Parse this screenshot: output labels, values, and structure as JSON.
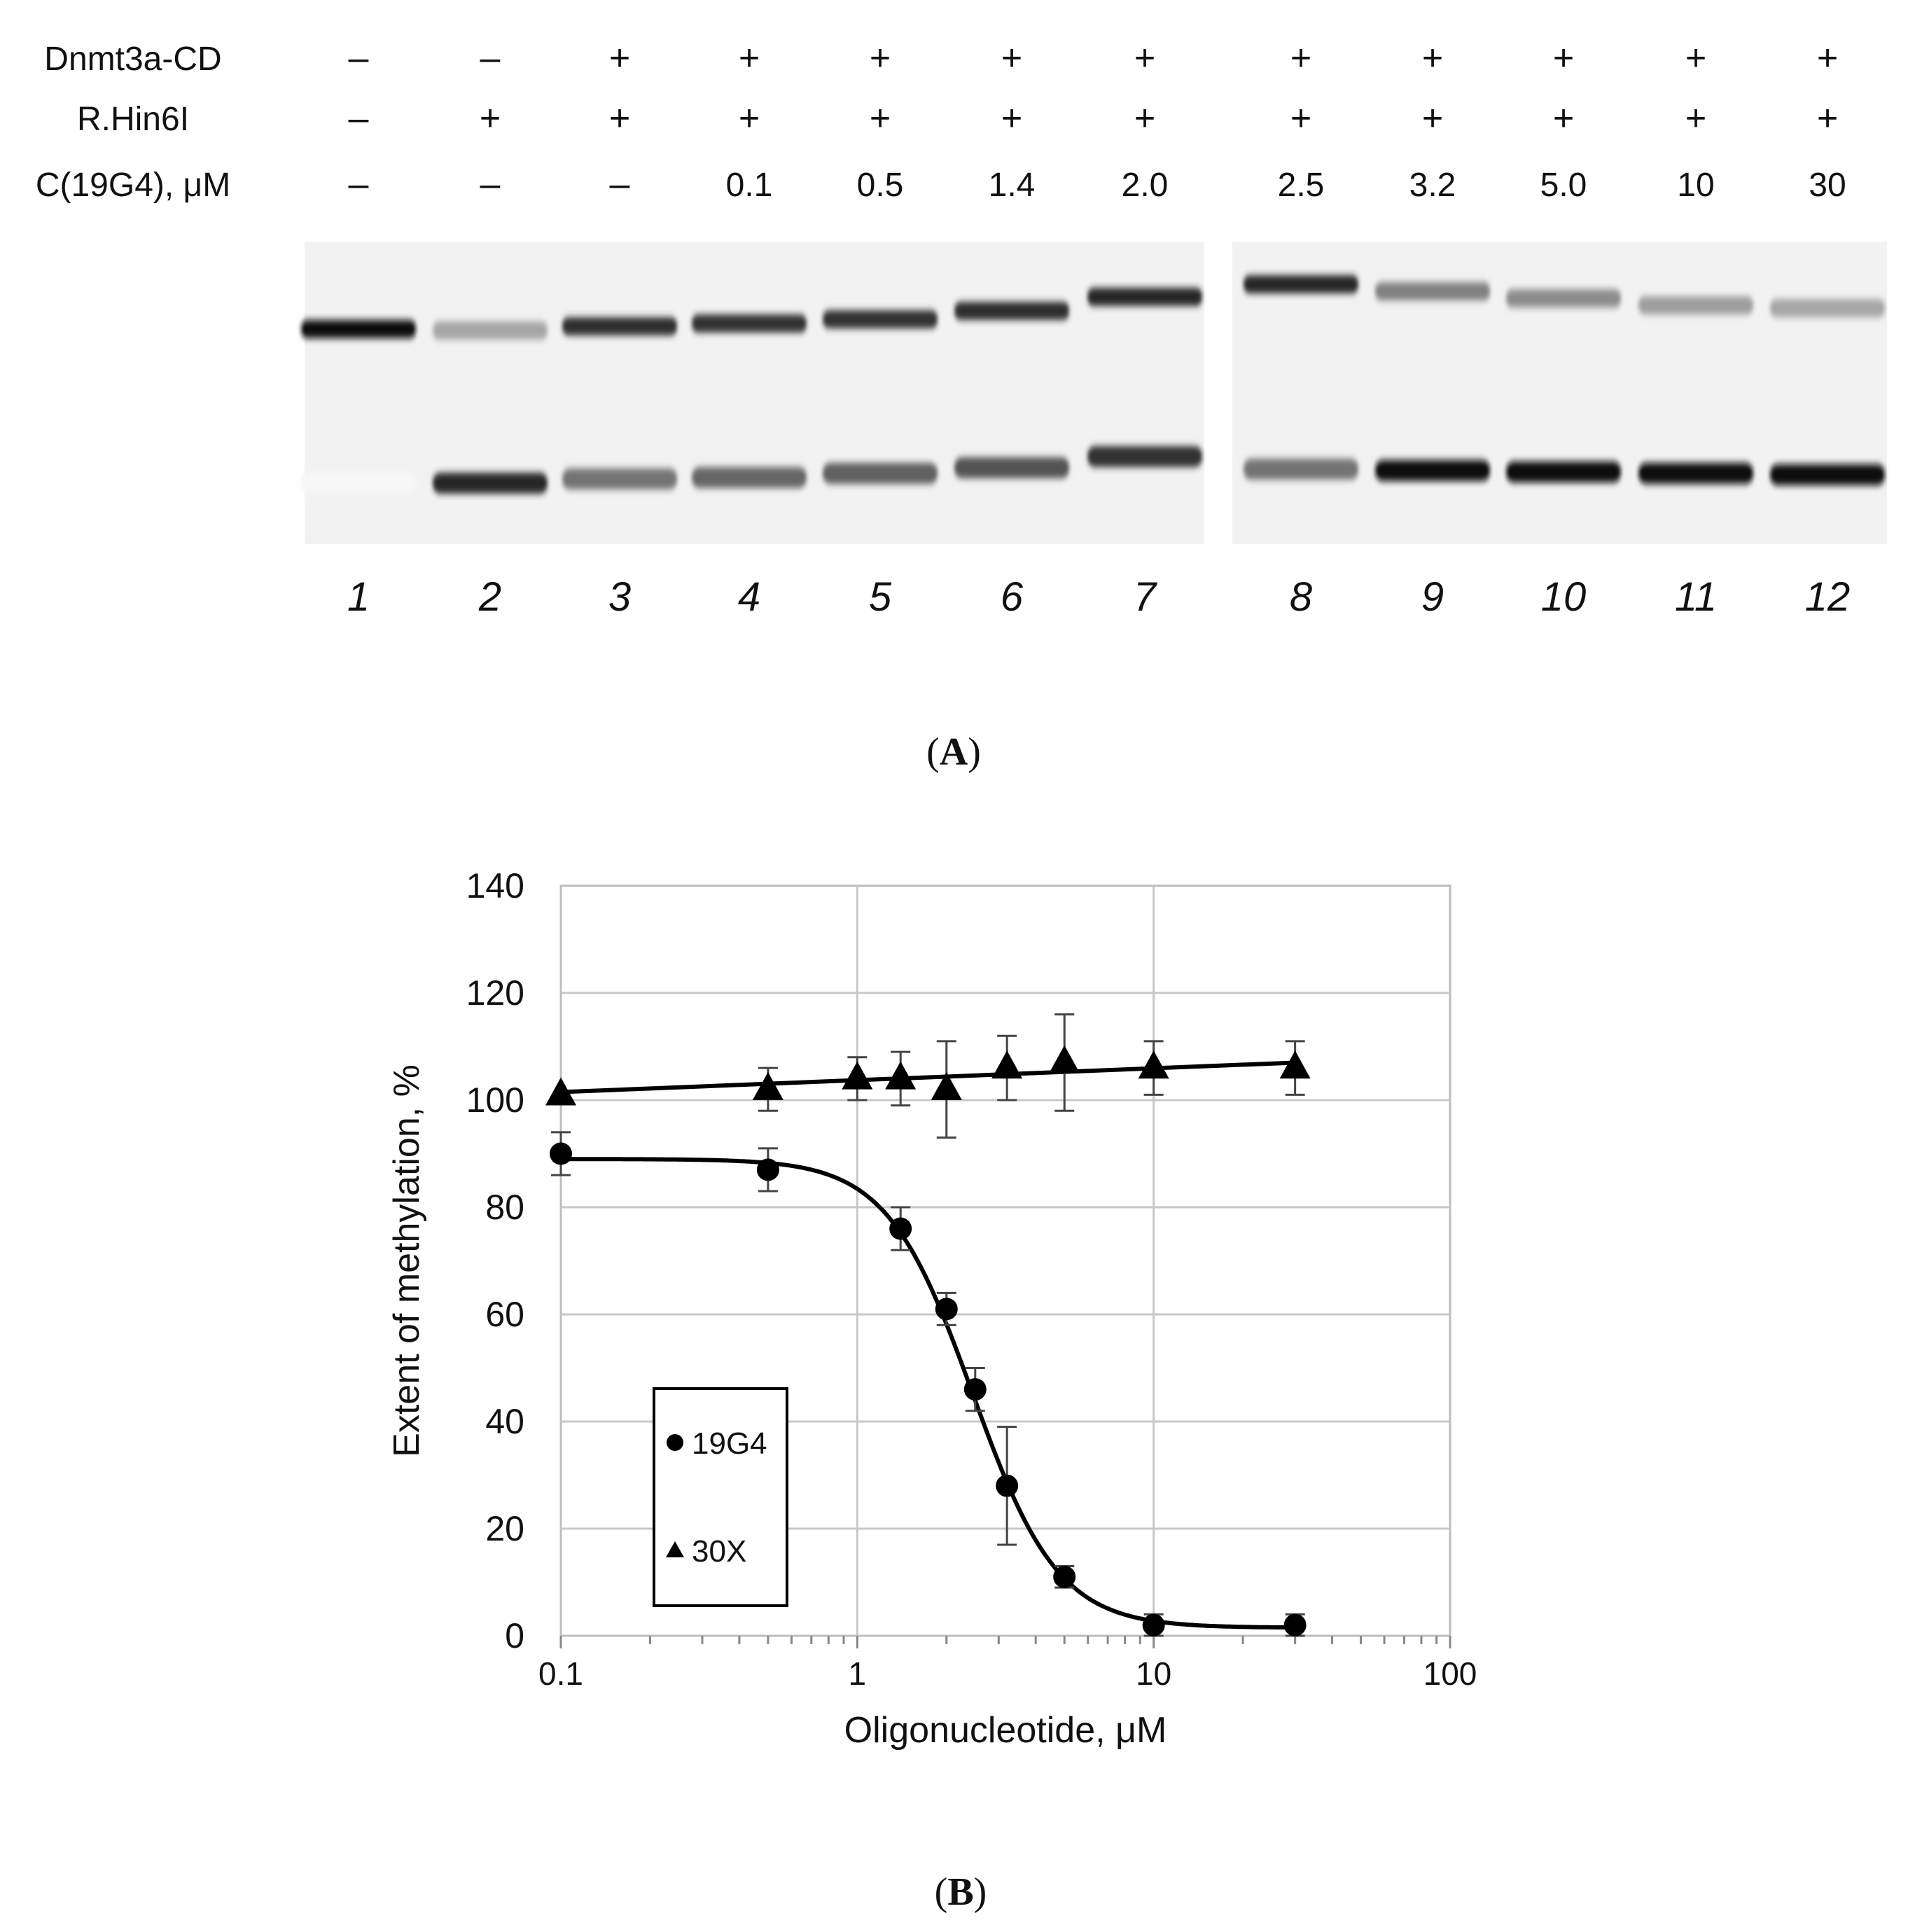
{
  "gel": {
    "row_labels": [
      "Dnmt3a-CD",
      "R.Hin6I",
      "C(19G4), μM"
    ],
    "rows": [
      [
        "–",
        "–",
        "+",
        "+",
        "+",
        "+",
        "+",
        "+",
        "+",
        "+",
        "+",
        "+"
      ],
      [
        "–",
        "+",
        "+",
        "+",
        "+",
        "+",
        "+",
        "+",
        "+",
        "+",
        "+",
        "+"
      ],
      [
        "–",
        "–",
        "–",
        "0.1",
        "0.5",
        "1.4",
        "2.0",
        "2.5",
        "3.2",
        "5.0",
        "10",
        "30"
      ]
    ],
    "lane_numbers": [
      "1",
      "2",
      "3",
      "4",
      "5",
      "6",
      "7",
      "8",
      "9",
      "10",
      "11",
      "12"
    ],
    "band_intensity_upper": [
      0.95,
      0.35,
      0.82,
      0.8,
      0.8,
      0.82,
      0.85,
      0.85,
      0.5,
      0.45,
      0.38,
      0.35
    ],
    "band_intensity_lower": [
      0.03,
      0.85,
      0.55,
      0.6,
      0.62,
      0.68,
      0.8,
      0.55,
      0.95,
      0.95,
      0.97,
      0.97
    ]
  },
  "panel_a_label": {
    "open": "(",
    "letter": "A",
    "close": ")"
  },
  "panel_b_label": {
    "open": "(",
    "letter": "B",
    "close": ")"
  },
  "chart_data": {
    "type": "scatter",
    "xscale": "log",
    "xlabel": "Oligonucleotide, μM",
    "ylabel": "Extent of methylation, %",
    "xlim": [
      0.1,
      100
    ],
    "ylim": [
      0,
      140
    ],
    "x_ticks": [
      0.1,
      1,
      10,
      100
    ],
    "x_tick_labels": [
      "0.1",
      "1",
      "10",
      "100"
    ],
    "y_ticks": [
      0,
      20,
      40,
      60,
      80,
      100,
      120,
      140
    ],
    "y_tick_labels": [
      "0",
      "20",
      "40",
      "60",
      "80",
      "100",
      "120",
      "140"
    ],
    "grid": true,
    "legend_position": "lower-left",
    "series": [
      {
        "name": "19G4",
        "marker": "circle",
        "x": [
          0.1,
          0.5,
          1.4,
          2.0,
          2.5,
          3.2,
          5.0,
          10,
          30
        ],
        "y": [
          90,
          87,
          76,
          61,
          46,
          28,
          11,
          2,
          2
        ],
        "err": [
          4,
          4,
          4,
          3,
          4,
          11,
          2,
          2,
          2
        ],
        "fit": {
          "model": "logistic",
          "top": 89,
          "bottom": 1.5,
          "ec50": 2.45,
          "hill": 3.0
        }
      },
      {
        "name": "30X",
        "marker": "triangle",
        "x": [
          0.1,
          0.5,
          1.0,
          1.4,
          2.0,
          3.2,
          5.0,
          10,
          30
        ],
        "y": [
          101,
          102,
          104,
          104,
          102,
          106,
          107,
          106,
          106
        ],
        "err": [
          0,
          4,
          4,
          5,
          9,
          6,
          9,
          5,
          5
        ],
        "fit": {
          "model": "log-linear",
          "y_at_0.1": 101.5,
          "y_at_30": 107
        }
      }
    ]
  }
}
